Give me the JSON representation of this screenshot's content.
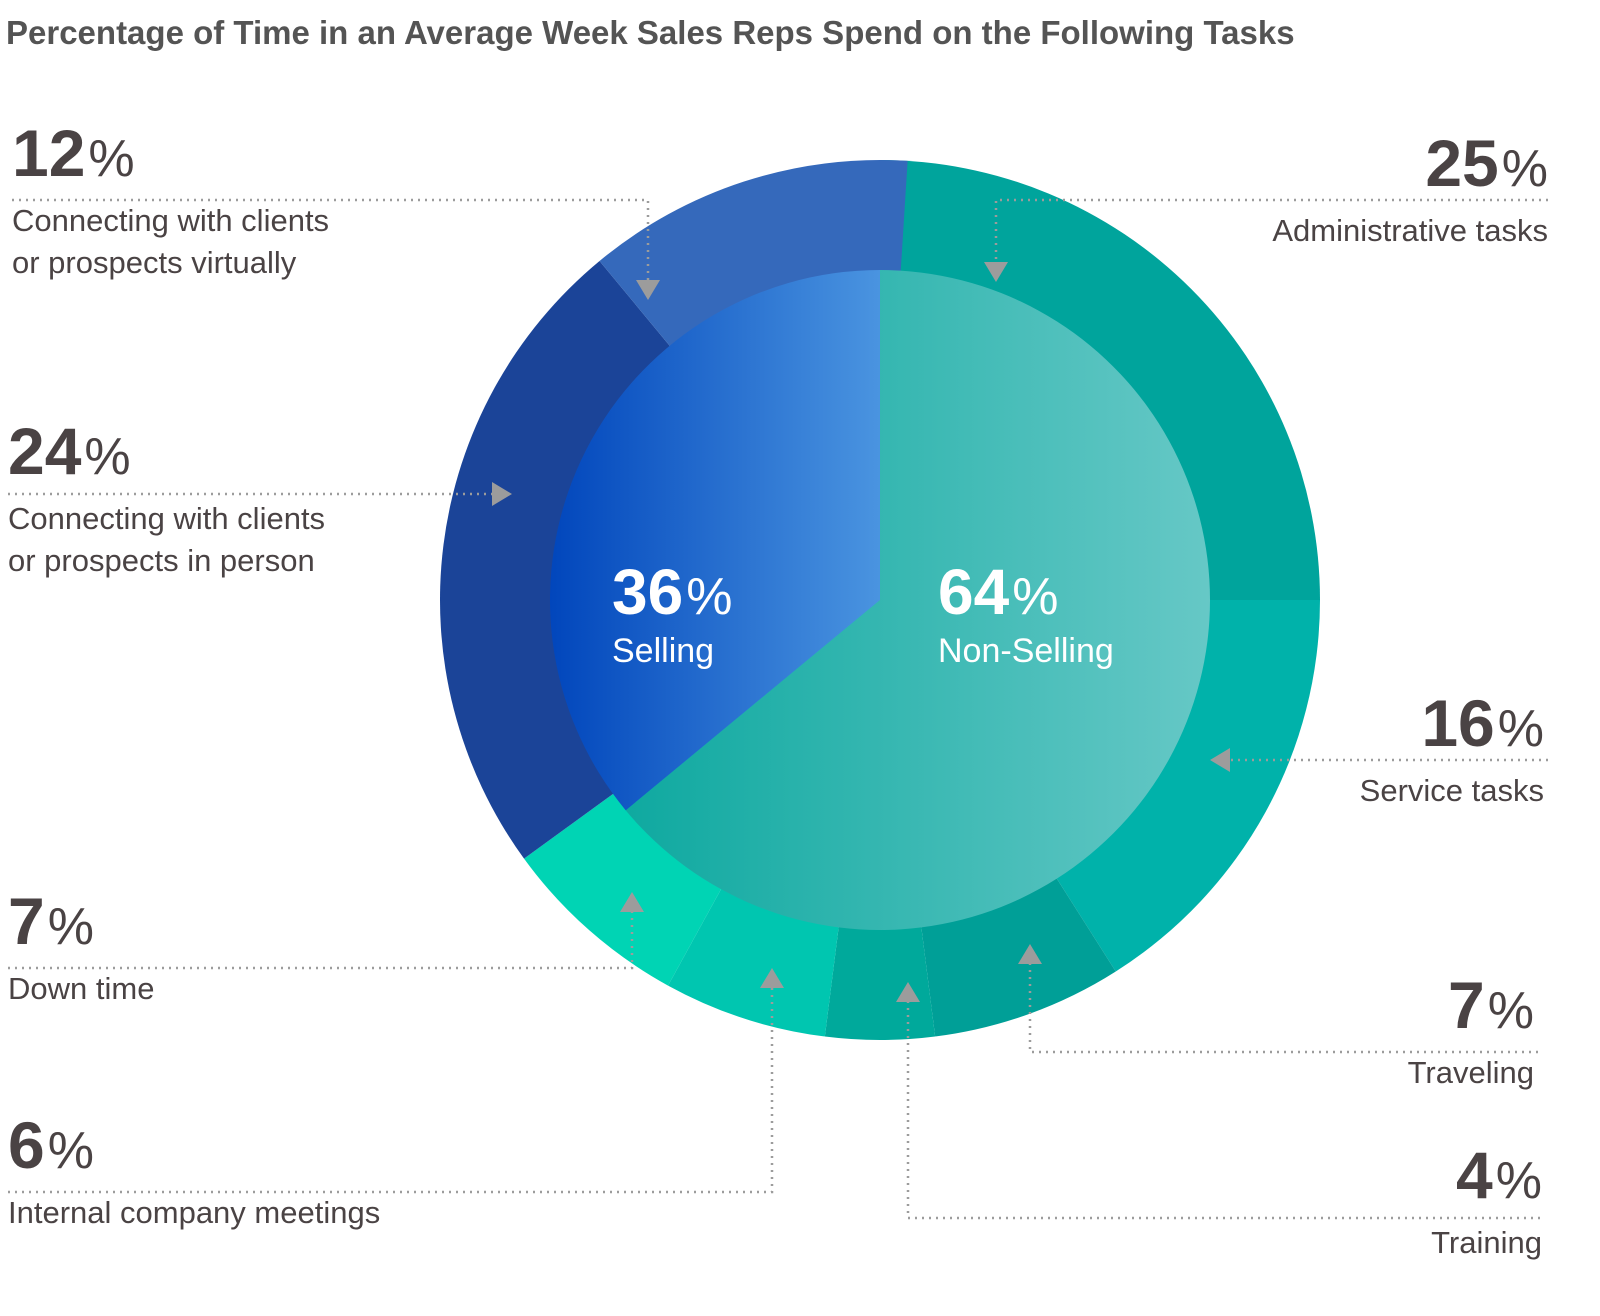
{
  "chart_data": {
    "type": "pie",
    "title": "Percentage of Time in an Average Week Sales Reps Spend on the Following Tasks",
    "unit": "%",
    "inner": [
      {
        "label": "Selling",
        "value": 36
      },
      {
        "label": "Non-Selling",
        "value": 64
      }
    ],
    "outer": [
      {
        "label": "Administrative tasks",
        "value": 25,
        "group": "Non-Selling",
        "color": "#00a49c"
      },
      {
        "label": "Service tasks",
        "value": 16,
        "group": "Non-Selling",
        "color": "#00b2aa"
      },
      {
        "label": "Traveling",
        "value": 7,
        "group": "Non-Selling",
        "color": "#009f97"
      },
      {
        "label": "Training",
        "value": 4,
        "group": "Non-Selling",
        "color": "#00a99b"
      },
      {
        "label": "Internal company meetings",
        "value": 6,
        "group": "Non-Selling",
        "color": "#00c6b0"
      },
      {
        "label": "Down time",
        "value": 7,
        "group": "Non-Selling",
        "color": "#00d4b4"
      },
      {
        "label": "Connecting with clients\nor prospects in person",
        "value": 24,
        "group": "Selling",
        "color": "#1b4498"
      },
      {
        "label": "Connecting with clients\nor prospects virtually",
        "value": 12,
        "group": "Selling",
        "color": "#3569bb"
      }
    ],
    "colors": {
      "selling_inner_start": "#0146bc",
      "selling_inner_end": "#4a94e0",
      "nonselling_inner_start": "#0fa9a0",
      "nonselling_inner_end": "#66c8c6",
      "text": "#4a4344",
      "leader": "#9c9c9c"
    }
  }
}
